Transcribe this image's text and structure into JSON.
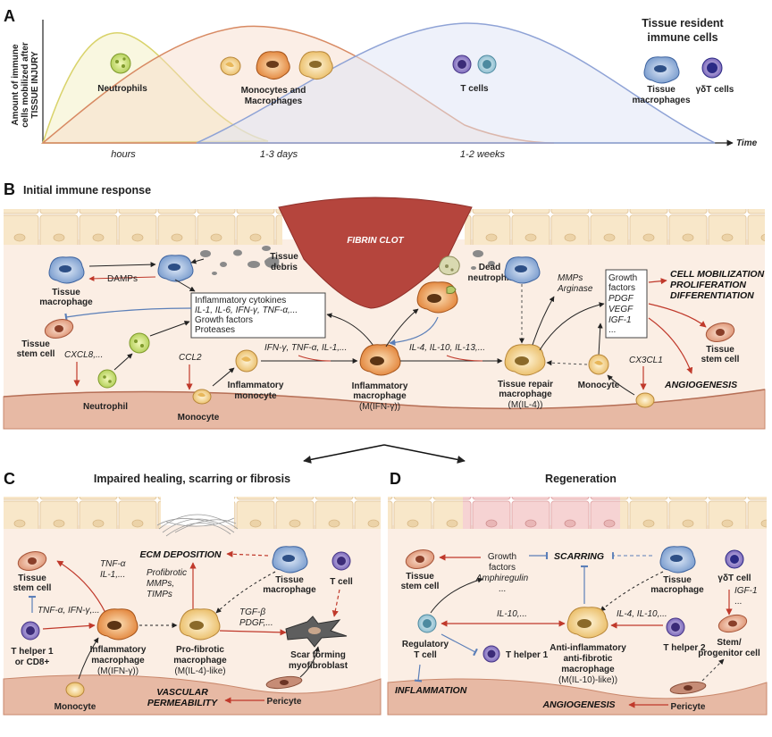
{
  "panel_a": {
    "letter": "A",
    "ylabel_lines": [
      "Amount of immune",
      "cells mobilized after",
      "TISSUE INJURY"
    ],
    "xlabel": "Time",
    "time_labels": [
      "hours",
      "1-3 days",
      "1-2 weeks"
    ],
    "curves": {
      "neutrophils": "Neutrophils",
      "monocytes": [
        "Monocytes and",
        "Macrophages"
      ],
      "tcells": "T cells"
    },
    "resident_title": [
      "Tissue resident",
      "immune cells"
    ],
    "resident_macro": [
      "Tissue",
      "macrophages"
    ],
    "resident_gdt": "γδT cells"
  },
  "panel_b": {
    "letter": "B",
    "title": "Initial immune response",
    "fibrin": "FIBRIN CLOT",
    "tissue_debris": [
      "Tissue",
      "debris"
    ],
    "dead_neutrophil": [
      "Dead",
      "neutrophil"
    ],
    "tissue_macrophage": [
      "Tissue",
      "macrophage"
    ],
    "damps": "DAMPs",
    "box_lines": [
      "Inflammatory cytokines",
      "IL-1, IL-6, IFN-γ, TNF-α,...",
      "Growth factors",
      "Proteases"
    ],
    "stem_cell": [
      "Tissue",
      "stem cell"
    ],
    "cxcl8": "CXCL8,...",
    "ccl2": "CCL2",
    "ifn_line": "IFN-γ, TNF-α, IL-1,...",
    "inflam_mono": [
      "Inflammatory",
      "monocyte"
    ],
    "inflam_macro": [
      "Inflammatory",
      "macrophage",
      "(M(IFN-γ))"
    ],
    "il4_line": "IL-4, IL-10, IL-13,...",
    "repair_macro": [
      "Tissue repair",
      "macrophage",
      "(M(IL-4))"
    ],
    "mmps": [
      "MMPs",
      "Arginase"
    ],
    "growth_box": [
      "Growth",
      "factors",
      "PDGF",
      "VEGF",
      "IGF-1",
      "..."
    ],
    "cell_mob": [
      "CELL MOBILIZATION",
      "PROLIFERATION",
      "DIFFERENTIATION"
    ],
    "stem_cell_right": [
      "Tissue",
      "stem cell"
    ],
    "angiogenesis": "ANGIOGENESIS",
    "cx3cl1": "CX3CL1",
    "monocyte_right": "Monocyte",
    "neutrophil": "Neutrophil",
    "monocyte": "Monocyte"
  },
  "panel_c": {
    "letter": "C",
    "title": "Impaired healing, scarring or fibrosis",
    "ecm": "ECM DEPOSITION",
    "stem_cell": [
      "Tissue",
      "stem cell"
    ],
    "tnf": [
      "TNF-α",
      "IL-1,..."
    ],
    "tnf2": "TNF-α, IFN-γ,...",
    "profib_text": [
      "Profibrotic",
      "MMPs,",
      "TIMPs"
    ],
    "tissue_macrophage": [
      "Tissue",
      "macrophage"
    ],
    "tcell": "T cell",
    "th1": [
      "T helper 1",
      "or CD8+"
    ],
    "inflam_macro": [
      "Inflammatory",
      "macrophage",
      "(M(IFN-γ))"
    ],
    "profib_macro": [
      "Pro-fibrotic",
      "macrophage",
      "(M(IL-4)-like)"
    ],
    "tgf": [
      "TGF-β",
      "PDGF,..."
    ],
    "scar": [
      "Scar forming",
      "myofibroblast"
    ],
    "monocyte": "Monocyte",
    "vascular": [
      "VASCULAR",
      "PERMEABILITY"
    ],
    "pericyte": "Pericyte"
  },
  "panel_d": {
    "letter": "D",
    "title": "Regeneration",
    "stem_cell": [
      "Tissue",
      "stem cell"
    ],
    "growth": [
      "Growth",
      "factors",
      "Amphiregulin",
      "..."
    ],
    "scarring": "SCARRING",
    "tissue_macrophage": [
      "Tissue",
      "macrophage"
    ],
    "gdt": "γδT cell",
    "igf": [
      "IGF-1",
      "..."
    ],
    "il10": "IL-10,...",
    "il4": "IL-4, IL-10,...",
    "treg": [
      "Regulatory",
      "T cell"
    ],
    "th2": "T helper 2",
    "anti_macro": [
      "Anti-inflammatory",
      "anti-fibrotic",
      "macrophage",
      "(M(IL-10)-like))"
    ],
    "stem_prog": [
      "Stem/",
      "progenitor cell"
    ],
    "th1": "T helper 1",
    "inflammation": "INFLAMMATION",
    "angiogenesis": "ANGIOGENESIS",
    "pericyte": "Pericyte"
  },
  "colors": {
    "epithelium": "#f6e3c2",
    "tissue": "#fbeee4",
    "vessel": "#e7b9a4",
    "fibrin": "#b5453d",
    "red_arrow": "#c0392b",
    "blue_arrow": "#5b7fb8",
    "neutrophil_curve": "#d9d36b",
    "monocyte_curve": "#d88a63",
    "tcell_curve": "#8fa3d6"
  }
}
